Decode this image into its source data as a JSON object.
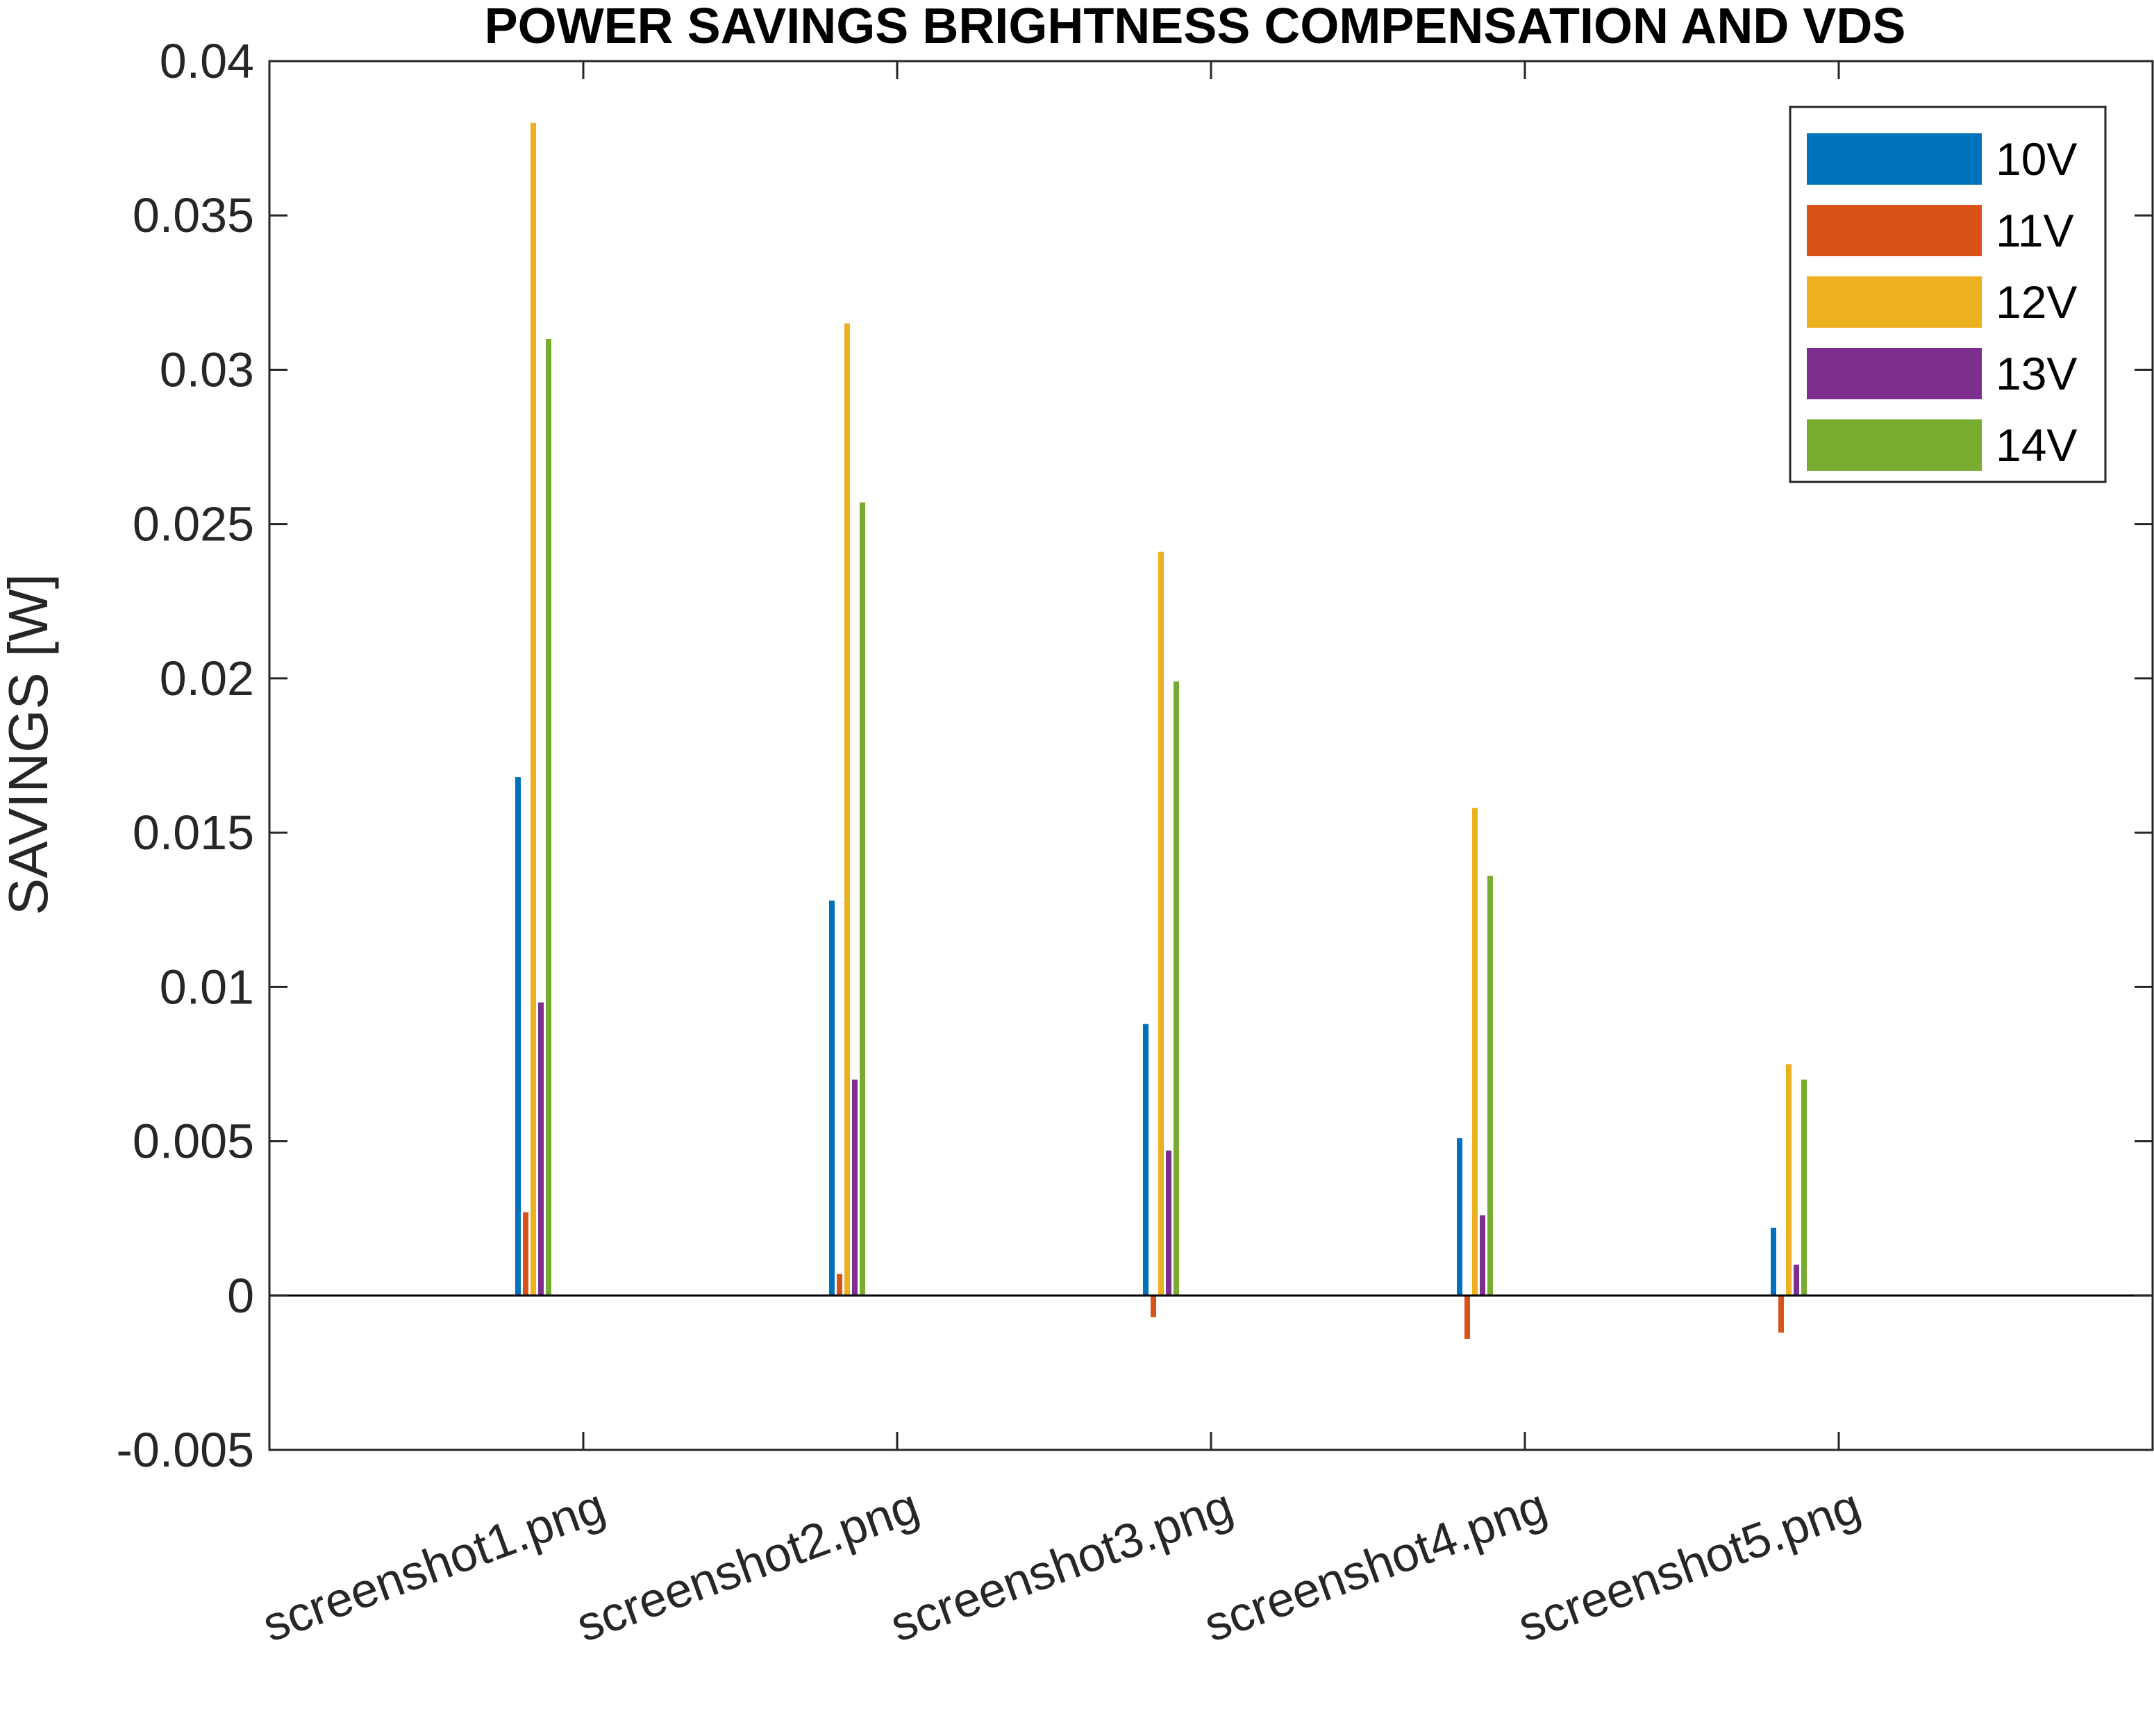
{
  "chart_data": {
    "type": "bar",
    "title": "POWER SAVINGS BRIGHTNESS COMPENSATION AND VDS",
    "xlabel": "",
    "ylabel": "SAVINGS  [W]",
    "ylim": [
      -0.005,
      0.04
    ],
    "yticks": [
      -0.005,
      0,
      0.005,
      0.01,
      0.015,
      0.02,
      0.025,
      0.03,
      0.035,
      0.04
    ],
    "ytick_labels": [
      "-0.005",
      "0",
      "0.005",
      "0.01",
      "0.015",
      "0.02",
      "0.025",
      "0.03",
      "0.035",
      "0.04"
    ],
    "categories": [
      "screenshot1.png",
      "screenshot2.png",
      "screenshot3.png",
      "screenshot4.png",
      "screenshot5.png"
    ],
    "grid": false,
    "legend_position": "top-right",
    "series": [
      {
        "name": "10V",
        "color": "#0072BD",
        "values": [
          0.0168,
          0.0128,
          0.0088,
          0.0051,
          0.0022
        ]
      },
      {
        "name": "11V",
        "color": "#D95319",
        "values": [
          0.0027,
          0.0007,
          -0.0007,
          -0.0014,
          -0.0012
        ]
      },
      {
        "name": "12V",
        "color": "#EDB120",
        "values": [
          0.038,
          0.0315,
          0.0241,
          0.0158,
          0.0075
        ]
      },
      {
        "name": "13V",
        "color": "#7E2F8E",
        "values": [
          0.0095,
          0.007,
          0.0047,
          0.0026,
          0.001
        ]
      },
      {
        "name": "14V",
        "color": "#77AC30",
        "values": [
          0.031,
          0.0257,
          0.0199,
          0.0136,
          0.007
        ]
      }
    ]
  }
}
